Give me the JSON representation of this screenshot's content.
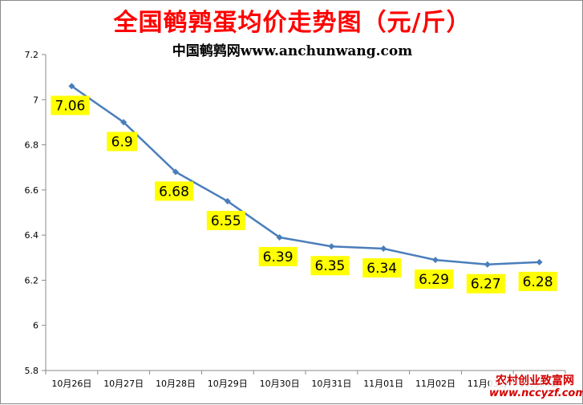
{
  "header": {
    "title": "全国鹌鹑蛋均价走势图（元/斤）",
    "subtitle": "中国鹌鹑网www.anchunwang.com"
  },
  "watermark": {
    "line1": "农村创业致富网",
    "line2": "www.nccyzf.com"
  },
  "colors": {
    "title": "#ff0000",
    "line": "#4a7ebb",
    "label_bg": "#ffff00"
  },
  "chart_data": {
    "type": "line",
    "title": "全国鹌鹑蛋均价走势图（元/斤）",
    "subtitle": "中国鹌鹑网www.anchunwang.com",
    "categories": [
      "10月26日",
      "10月27日",
      "10月28日",
      "10月29日",
      "10月30日",
      "10月31日",
      "11月01日",
      "11月02日",
      "11月03日",
      "11月04日"
    ],
    "series": [
      {
        "values": [
          7.06,
          6.9,
          6.68,
          6.55,
          6.39,
          6.35,
          6.34,
          6.29,
          6.27,
          6.28
        ]
      }
    ],
    "data_labels": [
      "7.06",
      "6.9",
      "6.68",
      "6.55",
      "6.39",
      "6.35",
      "6.34",
      "6.29",
      "6.27",
      "6.28"
    ],
    "yticks": [
      "5.8",
      "6",
      "6.2",
      "6.4",
      "6.6",
      "6.8",
      "7",
      "7.2"
    ],
    "ylim": [
      5.8,
      7.2
    ],
    "xlabel": "",
    "ylabel": "",
    "grid": false,
    "legend": "none"
  }
}
